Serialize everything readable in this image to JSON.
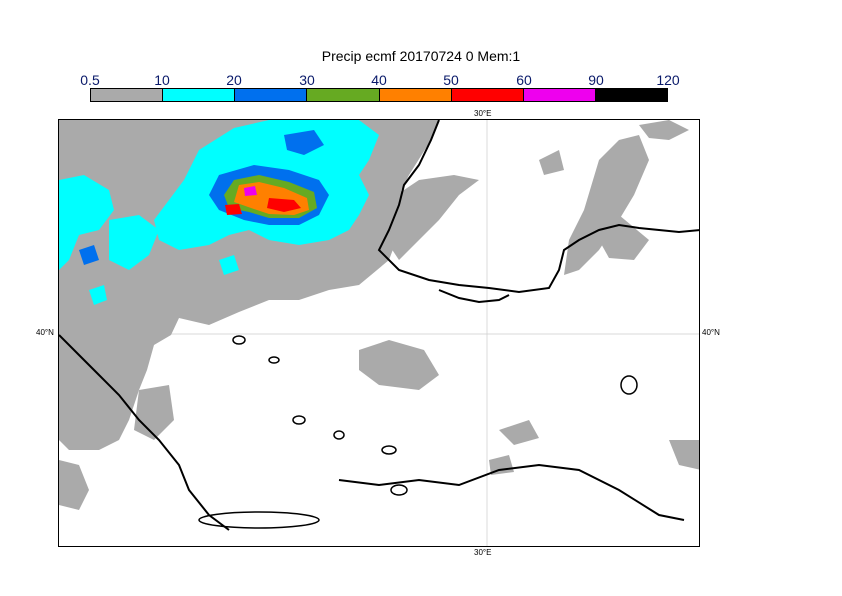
{
  "title": "Precip ecmf 20170724 0 Mem:1",
  "legend": {
    "labels": [
      "0.5",
      "10",
      "20",
      "30",
      "40",
      "50",
      "60",
      "90",
      "120"
    ],
    "colors": [
      "#aaaaaa",
      "#00ffff",
      "#0070ee",
      "#66aa22",
      "#ff8000",
      "#ff0000",
      "#ee00ee",
      "#000000"
    ]
  },
  "map": {
    "lon_label_top": "30°E",
    "lon_label_bottom": "30°E",
    "lat_label_left": "40°N",
    "lat_label_right": "40°N",
    "colors": {
      "land_precip": "#aaaaaa",
      "cyan": "#00ffff",
      "blue": "#0070ee",
      "green": "#66aa22",
      "orange": "#ff8000",
      "red": "#ff0000",
      "magenta": "#ee00ee",
      "coast": "#000000"
    }
  }
}
